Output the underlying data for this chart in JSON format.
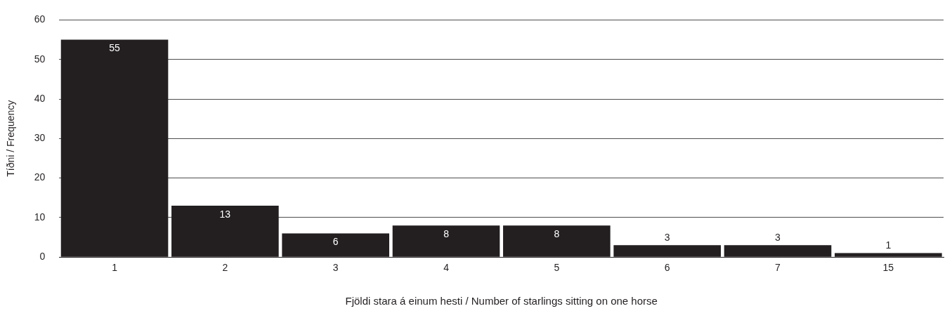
{
  "chart_data": {
    "type": "bar",
    "xlabel": "Fjöldi stara á einum hesti / Number of starlings sitting on one horse",
    "ylabel": "Tíðni / Frequency",
    "categories": [
      "1",
      "2",
      "3",
      "4",
      "5",
      "6",
      "7",
      "15"
    ],
    "values": [
      55,
      13,
      6,
      8,
      8,
      3,
      3,
      1
    ],
    "color": "#231f20",
    "ylim": [
      0,
      60
    ],
    "yticks": [
      0,
      10,
      20,
      30,
      40,
      50,
      60
    ],
    "grid": "y",
    "data_labels": true,
    "legend": false
  }
}
